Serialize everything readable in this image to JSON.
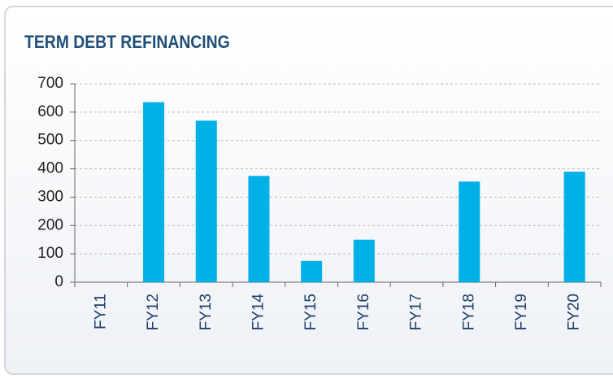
{
  "chart_data": {
    "type": "bar",
    "title": "TERM DEBT REFINANCING",
    "categories": [
      "FY11",
      "FY12",
      "FY13",
      "FY14",
      "FY15",
      "FY16",
      "FY17",
      "FY18",
      "FY19",
      "FY20"
    ],
    "values": [
      0,
      635,
      570,
      375,
      75,
      150,
      0,
      355,
      0,
      390
    ],
    "color": "#00b0e6",
    "ylim": [
      0,
      700
    ],
    "yticks": [
      0,
      100,
      200,
      300,
      400,
      500,
      600,
      700
    ],
    "grid": true
  }
}
